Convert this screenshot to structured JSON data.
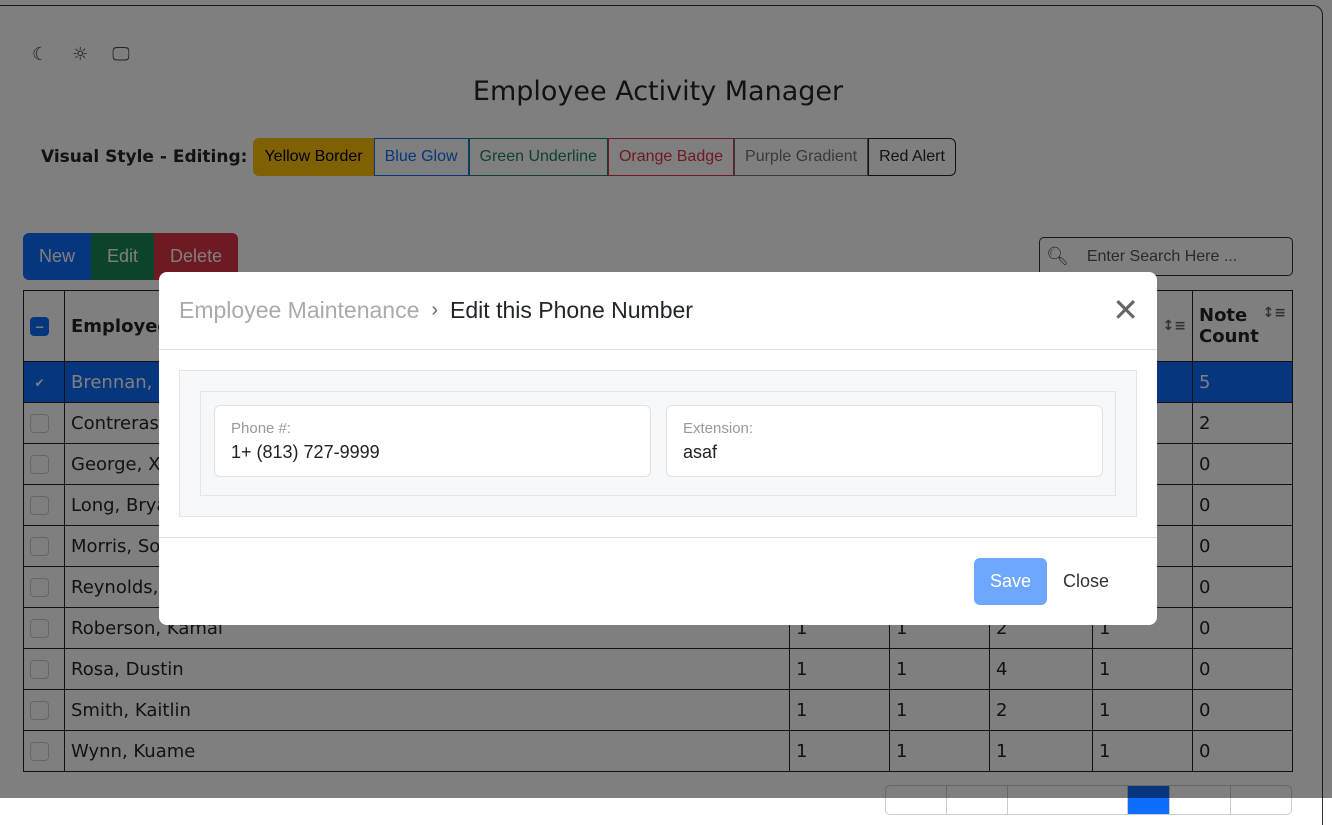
{
  "theme_icons": [
    "moon-icon",
    "sun-icon",
    "monitor-icon"
  ],
  "title": "Employee Activity Manager",
  "visual_style": {
    "label": "Visual Style - Editing:",
    "options": [
      {
        "label": "Yellow Border",
        "color": "#ffc107",
        "active": true
      },
      {
        "label": "Blue Glow",
        "color": "#0d6efd"
      },
      {
        "label": "Green Underline",
        "color": "#198754"
      },
      {
        "label": "Orange Badge",
        "color": "#dc3545"
      },
      {
        "label": "Purple Gradient",
        "color": "#6c757d"
      },
      {
        "label": "Red Alert",
        "color": "#212529"
      }
    ]
  },
  "actions": {
    "new": "New",
    "edit": "Edit",
    "delete": "Delete"
  },
  "search": {
    "placeholder": "Enter Search Here ..."
  },
  "table": {
    "headers": {
      "employee": "Employee",
      "note_count": "Note Count"
    },
    "rows": [
      {
        "name": "Brennan, I",
        "cols": [
          "",
          "",
          "",
          "",
          ""
        ],
        "note": "5",
        "selected": true
      },
      {
        "name": "Contreras,",
        "cols": [
          "",
          "",
          "",
          ""
        ],
        "note": "2"
      },
      {
        "name": "George, Xa",
        "cols": [
          "",
          "",
          "",
          ""
        ],
        "note": "0"
      },
      {
        "name": "Long, Brya",
        "cols": [
          "",
          "",
          "",
          ""
        ],
        "note": "0"
      },
      {
        "name": "Morris, So",
        "cols": [
          "",
          "",
          "",
          ""
        ],
        "note": "0"
      },
      {
        "name": "Reynolds,",
        "cols": [
          "",
          "",
          "",
          ""
        ],
        "note": "0"
      },
      {
        "name": "Roberson, Kamal",
        "cols": [
          "1",
          "1",
          "2",
          "1"
        ],
        "note": "0"
      },
      {
        "name": "Rosa, Dustin",
        "cols": [
          "1",
          "1",
          "4",
          "1"
        ],
        "note": "0"
      },
      {
        "name": "Smith, Kaitlin",
        "cols": [
          "1",
          "1",
          "2",
          "1"
        ],
        "note": "0"
      },
      {
        "name": "Wynn, Kuame",
        "cols": [
          "1",
          "1",
          "1",
          "1"
        ],
        "note": "0"
      }
    ]
  },
  "modal": {
    "breadcrumb_parent": "Employee Maintenance",
    "breadcrumb_sep": "›",
    "title": "Edit this Phone Number",
    "phone_label": "Phone #:",
    "phone_value": "1+ (813) 727-9999",
    "ext_label": "Extension:",
    "ext_value": "asaf",
    "save": "Save",
    "close": "Close"
  }
}
